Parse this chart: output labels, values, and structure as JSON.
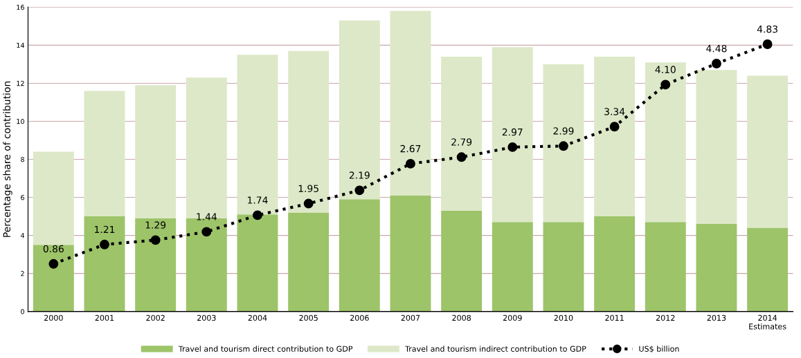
{
  "chart_data": {
    "type": "bar",
    "stacked": true,
    "ylabel": "Percentage share of contribution",
    "categories": [
      "2000",
      "2001",
      "2002",
      "2003",
      "2004",
      "2005",
      "2006",
      "2007",
      "2008",
      "2009",
      "2010",
      "2011",
      "2012",
      "2013",
      "2014\nEstimates"
    ],
    "series": [
      {
        "name": "Travel and tourism direct contribution to GDP",
        "color": "#9dc469",
        "values": [
          3.5,
          5.0,
          4.9,
          4.9,
          5.1,
          5.2,
          5.9,
          6.1,
          5.3,
          4.7,
          4.7,
          5.0,
          4.7,
          4.6,
          4.4
        ]
      },
      {
        "name": "Travel and tourism indirect contribution to GDP",
        "color": "#dde8c8",
        "values": [
          4.9,
          6.6,
          7.0,
          7.4,
          8.4,
          8.5,
          9.4,
          9.7,
          8.1,
          9.2,
          8.3,
          8.4,
          8.4,
          8.1,
          8.0
        ]
      },
      {
        "name": "US$ billion",
        "type": "line",
        "axis": "y2",
        "color": "#000000",
        "marker": "circle",
        "line_style": "dotted",
        "values": [
          0.86,
          1.21,
          1.29,
          1.44,
          1.74,
          1.95,
          2.19,
          2.67,
          2.79,
          2.97,
          2.99,
          3.34,
          4.1,
          4.48,
          4.83
        ],
        "value_labels": [
          "0.86",
          "1.21",
          "1.29",
          "1.44",
          "1.74",
          "1.95",
          "2.19",
          "2.67",
          "2.79",
          "2.97",
          "2.99",
          "3.34",
          "4.10",
          "4.48",
          "4.83"
        ]
      }
    ],
    "ylim": [
      0,
      16
    ],
    "yticks": [
      0,
      2,
      4,
      6,
      8,
      10,
      12,
      14,
      16
    ],
    "y2lim": [
      0,
      5.5
    ],
    "grid": "y",
    "legend": "bottom"
  }
}
